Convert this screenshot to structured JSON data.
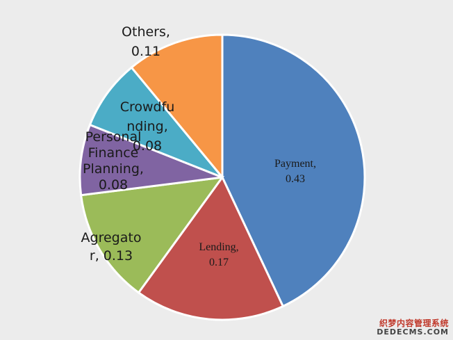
{
  "chart_data": {
    "type": "pie",
    "slices": [
      {
        "label": "Payment,",
        "value": 0.43,
        "value_text": "0.43",
        "color": "#4f81bd",
        "font": "serif"
      },
      {
        "label": "Lending,",
        "value": 0.17,
        "value_text": "0.17",
        "color": "#c0504d",
        "font": "serif"
      },
      {
        "label": "Agregator, 0.13",
        "label_lines": [
          "Agregato",
          "r, 0.13"
        ],
        "value": 0.13,
        "color": "#9bbb59",
        "font": "sans"
      },
      {
        "label": "Personal Finance Planning, 0.08",
        "label_lines": [
          "Personal",
          "Finance",
          "Planning,",
          "0.08"
        ],
        "value": 0.08,
        "color": "#8064a2",
        "font": "sans"
      },
      {
        "label": "Crowdfunding, 0.08",
        "label_lines": [
          "Crowdfu",
          "nding,",
          "0.08"
        ],
        "value": 0.08,
        "color": "#4bacc6",
        "font": "sans"
      },
      {
        "label": "Others, 0.11",
        "label_lines": [
          "Others,",
          "0.11"
        ],
        "value": 0.11,
        "color": "#f79646",
        "font": "sans"
      }
    ],
    "start": "top",
    "direction": "clockwise",
    "legend": "none"
  },
  "watermark": {
    "line1": "织梦内容管理系统",
    "line2": "DEDECMS.COM"
  }
}
